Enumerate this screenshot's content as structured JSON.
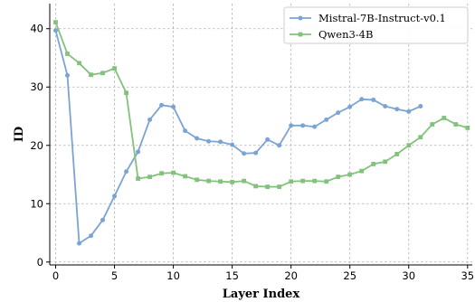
{
  "chart_data": {
    "type": "line",
    "xlabel": "Layer Index",
    "ylabel": "ID",
    "xlim": [
      -0.5,
      35.4
    ],
    "ylim": [
      -0.5,
      44.3
    ],
    "xticks": [
      0,
      5,
      10,
      15,
      20,
      25,
      30,
      35
    ],
    "yticks": [
      0,
      10,
      20,
      30,
      40
    ],
    "grid": true,
    "legend_position": "top-right",
    "series": [
      {
        "name": "Mistral-7B-Instruct-v0.1",
        "color": "#7ba3d4",
        "marker": "circle",
        "x": [
          0,
          1,
          2,
          3,
          4,
          5,
          6,
          7,
          8,
          9,
          10,
          11,
          12,
          13,
          14,
          15,
          16,
          17,
          18,
          19,
          20,
          21,
          22,
          23,
          24,
          25,
          26,
          27,
          28,
          29,
          30,
          31
        ],
        "values": [
          39.7,
          32.0,
          3.2,
          4.5,
          7.2,
          11.3,
          15.5,
          18.9,
          24.4,
          26.9,
          26.6,
          22.5,
          21.2,
          20.7,
          20.6,
          20.1,
          18.6,
          18.7,
          21.0,
          20.0,
          23.4,
          23.4,
          23.2,
          24.4,
          25.6,
          26.6,
          27.9,
          27.8,
          26.7,
          26.2,
          25.8,
          26.7
        ]
      },
      {
        "name": "Qwen3-4B",
        "color": "#82c27c",
        "marker": "square",
        "x": [
          0,
          1,
          2,
          3,
          4,
          5,
          6,
          7,
          8,
          9,
          10,
          11,
          12,
          13,
          14,
          15,
          16,
          17,
          18,
          19,
          20,
          21,
          22,
          23,
          24,
          25,
          26,
          27,
          28,
          29,
          30,
          31,
          32,
          33,
          34,
          35
        ],
        "values": [
          41.1,
          35.7,
          34.1,
          32.1,
          32.4,
          33.2,
          29.0,
          14.3,
          14.6,
          15.2,
          15.3,
          14.7,
          14.1,
          13.9,
          13.8,
          13.7,
          13.9,
          13.0,
          12.9,
          12.9,
          13.8,
          13.9,
          13.9,
          13.8,
          14.6,
          15.0,
          15.6,
          16.8,
          17.2,
          18.5,
          20.0,
          21.4,
          23.6,
          24.7,
          23.6,
          23.0
        ]
      }
    ]
  }
}
